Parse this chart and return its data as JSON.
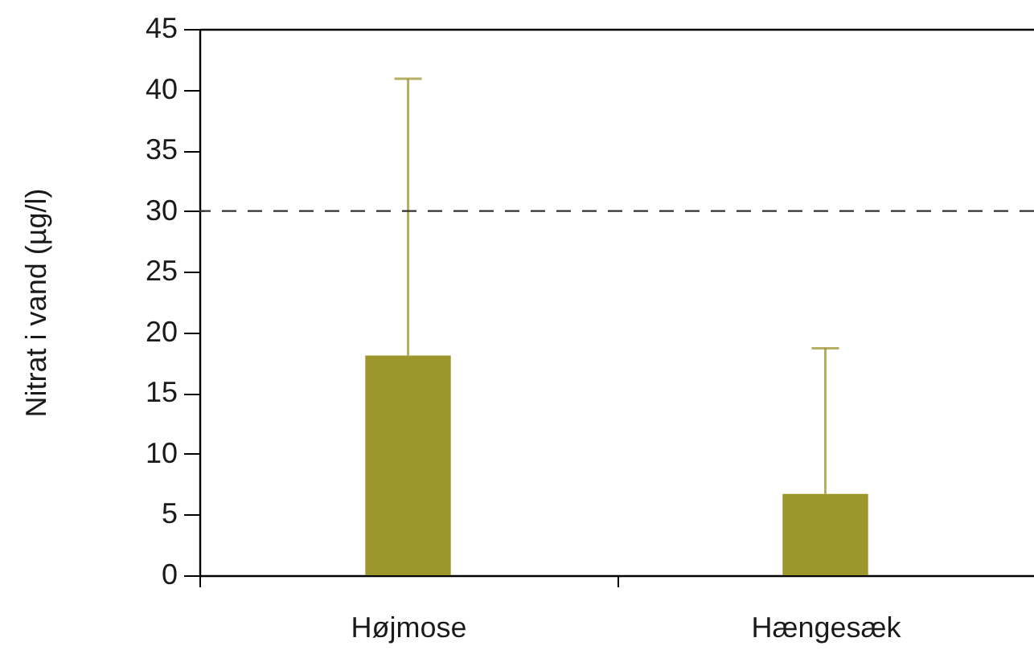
{
  "chart_data": {
    "type": "bar",
    "ylabel": "Nitrat i vand (µg/l)",
    "categories": [
      "Højmose",
      "Hængesæk"
    ],
    "values": [
      18.1,
      6.7
    ],
    "color": "#9c962c",
    "errors": [
      [
        18.1,
        40.9
      ],
      [
        6.7,
        18.7
      ]
    ],
    "ylim": [
      0,
      45
    ],
    "yticks": [
      0,
      5,
      10,
      15,
      20,
      25,
      30,
      35,
      40,
      45
    ],
    "ref_lines": [
      {
        "axis": "y",
        "value": 30,
        "line_style": "dashed",
        "color": "#333333"
      }
    ]
  }
}
